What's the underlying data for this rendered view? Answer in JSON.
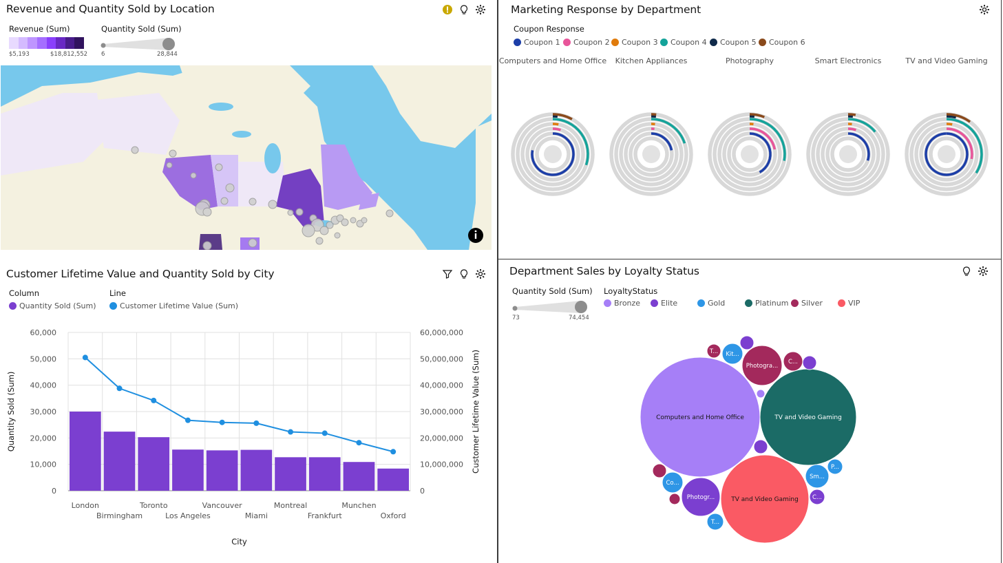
{
  "panels": {
    "map": {
      "title": "Revenue and Quantity Sold by Location",
      "revenue_legend": {
        "title": "Revenue (Sum)",
        "min": "$5,193",
        "max": "$18,812,552",
        "colors": [
          "#e8daff",
          "#d4bbff",
          "#be95ff",
          "#a56eff",
          "#8a3ffc",
          "#6929c4",
          "#491d8b",
          "#31135e"
        ]
      },
      "quantity_legend": {
        "title": "Quantity Sold (Sum)",
        "min": "6",
        "max": "28,844"
      },
      "icons": {
        "warning": "warning-icon",
        "insight": "lightbulb-icon",
        "settings": "gear-icon",
        "info": "info-icon"
      }
    },
    "marketing": {
      "title": "Marketing Response by Department",
      "legend_title": "Coupon Response",
      "coupons": [
        {
          "label": "Coupon 1",
          "color": "#1c3ea8"
        },
        {
          "label": "Coupon 2",
          "color": "#e8559a"
        },
        {
          "label": "Coupon 3",
          "color": "#e07b0c"
        },
        {
          "label": "Coupon 4",
          "color": "#14a39a"
        },
        {
          "label": "Coupon 5",
          "color": "#0f2a4a"
        },
        {
          "label": "Coupon 6",
          "color": "#8a4a1c"
        }
      ],
      "departments": [
        {
          "name": "Computers and Home Office",
          "values": [
            0.78,
            0.05,
            0.03,
            0.3,
            0.02,
            0.08
          ]
        },
        {
          "name": "Kitchen Appliances",
          "values": [
            0.22,
            0.02,
            0.02,
            0.2,
            0.01,
            0.02
          ]
        },
        {
          "name": "Photography",
          "values": [
            0.42,
            0.22,
            0.02,
            0.28,
            0.01,
            0.06
          ]
        },
        {
          "name": "Smart Electronics",
          "values": [
            0.3,
            0.05,
            0.02,
            0.14,
            0.01,
            0.03
          ]
        },
        {
          "name": "TV and Video Gaming",
          "values": [
            1.0,
            0.28,
            0.03,
            0.34,
            0.04,
            0.1
          ]
        }
      ]
    },
    "clv": {
      "title": "Customer Lifetime Value and Quantity Sold by City",
      "column_legend_title": "Column",
      "line_legend_title": "Line",
      "column_series": "Quantity Sold (Sum)",
      "line_series": "Customer Lifetime Value (Sum)",
      "column_color": "#7b3fd0",
      "line_color": "#1f8fe0"
    },
    "loyalty": {
      "title": "Department Sales by Loyalty Status",
      "quantity_legend": {
        "title": "Quantity Sold (Sum)",
        "min": "73",
        "max": "74,454"
      },
      "legend_title": "LoyaltyStatus",
      "statuses": [
        {
          "label": "Bronze",
          "color": "#a67ff7"
        },
        {
          "label": "Elite",
          "color": "#7b3fd0"
        },
        {
          "label": "Gold",
          "color": "#2e96e6"
        },
        {
          "label": "Platinum",
          "color": "#1b6b66"
        },
        {
          "label": "Silver",
          "color": "#a3295c"
        },
        {
          "label": "VIP",
          "color": "#fa5a64"
        }
      ],
      "bubble_labels": {
        "computers": "Computers and Home Office",
        "tvgaming_platinum": "TV and Video Gaming",
        "tvgaming_vip": "TV and Video Gaming",
        "photo_silver": "Photogra...",
        "photo_elite": "Photogr...",
        "kit": "Kit...",
        "t1": "T...",
        "c1": "C...",
        "co": "Co...",
        "sm": "Sm...",
        "p": "P...",
        "c2": "C...",
        "t2": "T..."
      }
    }
  },
  "chart_data": {
    "type": "bar",
    "categories": [
      "London",
      "Birmingham",
      "Toronto",
      "Los Angeles",
      "Vancouver",
      "Miami",
      "Montreal",
      "Frankfurt",
      "Munchen",
      "Oxford"
    ],
    "series": [
      {
        "name": "Quantity Sold (Sum)",
        "type": "bar",
        "axis": "left",
        "values": [
          30000,
          22400,
          20300,
          15600,
          15300,
          15500,
          12700,
          12700,
          10900,
          8400
        ]
      },
      {
        "name": "Customer Lifetime Value (Sum)",
        "type": "line",
        "axis": "right",
        "values": [
          50500000,
          38800000,
          34200000,
          26700000,
          25900000,
          25600000,
          22300000,
          21800000,
          18200000,
          14800000
        ]
      }
    ],
    "xlabel": "City",
    "ylabel": "Quantity Sold (Sum)",
    "y2label": "Customer Lifetime Value (Sum)",
    "ylim": [
      0,
      60000
    ],
    "y2lim": [
      0,
      60000000
    ],
    "yticks": [
      "0",
      "10,000",
      "20,000",
      "30,000",
      "40,000",
      "50,000",
      "60,000"
    ],
    "y2ticks": [
      "0",
      "10,000,000",
      "20,000,000",
      "30,000,000",
      "40,000,000",
      "50,000,000",
      "60,000,000"
    ],
    "grid": true
  }
}
